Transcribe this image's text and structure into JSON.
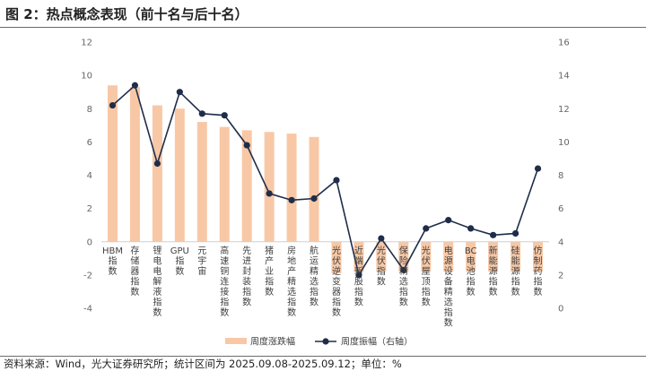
{
  "header": {
    "title": "图 2：热点概念表现（前十名与后十名）"
  },
  "footer": {
    "source": "资料来源：Wind，光大证券研究所；统计区间为 2025.09.08-2025.09.12；单位：%"
  },
  "colors": {
    "bar": "#F8C8A6",
    "line": "#1F2D4A",
    "axis": "#d0d0d0"
  },
  "chart_data": {
    "type": "bar+line",
    "categories": [
      "HBM指数",
      "存储器指数",
      "锂电电解液指数",
      "GPU指数",
      "元宇宙",
      "高速铜连接指数",
      "先进封装指数",
      "猪产业指数",
      "房地产精选指数",
      "航运精选指数",
      "光伏逆变器指数",
      "近端新股指数",
      "光伏指数",
      "保险精选指数",
      "光伏屋顶指数",
      "电源设备精选指数",
      "BC电池指数",
      "新能源指数",
      "硅能源指数",
      "仿制药指数"
    ],
    "series": [
      {
        "name": "周度涨跌幅",
        "axis": "left",
        "type": "bar",
        "values": [
          9.4,
          9.3,
          8.2,
          8.0,
          7.2,
          6.9,
          6.7,
          6.6,
          6.5,
          6.3,
          -1.9,
          -1.8,
          -1.8,
          -1.8,
          -1.8,
          -1.8,
          -1.8,
          -1.8,
          -1.8,
          -1.8
        ]
      },
      {
        "name": "周度振幅（右轴）",
        "axis": "right",
        "type": "line",
        "values": [
          12.2,
          13.4,
          8.7,
          13.0,
          11.7,
          11.6,
          9.8,
          6.9,
          6.5,
          6.6,
          7.7,
          2.0,
          4.2,
          2.3,
          4.8,
          5.3,
          4.8,
          4.4,
          4.5,
          8.4
        ]
      }
    ],
    "y_left": {
      "min": -4,
      "max": 12,
      "ticks": [
        12,
        10,
        8,
        6,
        4,
        2,
        0,
        -2,
        -4
      ]
    },
    "y_right": {
      "min": 0,
      "max": 16,
      "ticks": [
        16,
        14,
        12,
        10,
        8,
        6,
        4,
        2,
        0
      ]
    },
    "legend": {
      "placement": "bottom",
      "items": [
        "周度涨跌幅",
        "周度振幅（右轴）"
      ]
    },
    "grid": false
  }
}
